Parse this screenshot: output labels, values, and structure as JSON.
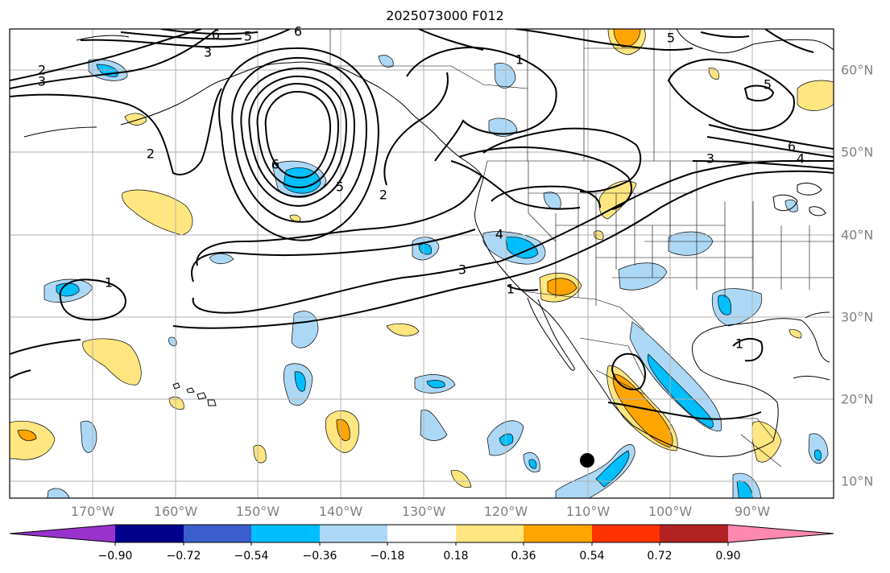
{
  "title": "2025073000 F012",
  "lon_labels": [
    "170°W",
    "160°W",
    "150°W",
    "140°W",
    "130°W",
    "120°W",
    "110°W",
    "100°W",
    "90°W"
  ],
  "lat_labels": [
    "60°N",
    "50°N",
    "40°N",
    "30°N",
    "20°N",
    "10°N"
  ],
  "colorbar": {
    "tick_labels": [
      "−0.90",
      "−0.72",
      "−0.54",
      "−0.36",
      "−0.18",
      "0.18",
      "0.36",
      "0.54",
      "0.72",
      "0.90"
    ],
    "colors": [
      "#9932cc",
      "#00008b",
      "#3a5fcd",
      "#00bfff",
      "#add8f5",
      "#ffffff",
      "#ffe680",
      "#ffa500",
      "#ff3300",
      "#b22222",
      "#ff88b0"
    ]
  },
  "contour_labels": [
    "6",
    "5",
    "6",
    "3",
    "2",
    "3",
    "6",
    "5",
    "2",
    "1",
    "3",
    "1",
    "4",
    "1",
    "2",
    "3",
    "4",
    "6",
    "5",
    "5",
    "1"
  ]
}
